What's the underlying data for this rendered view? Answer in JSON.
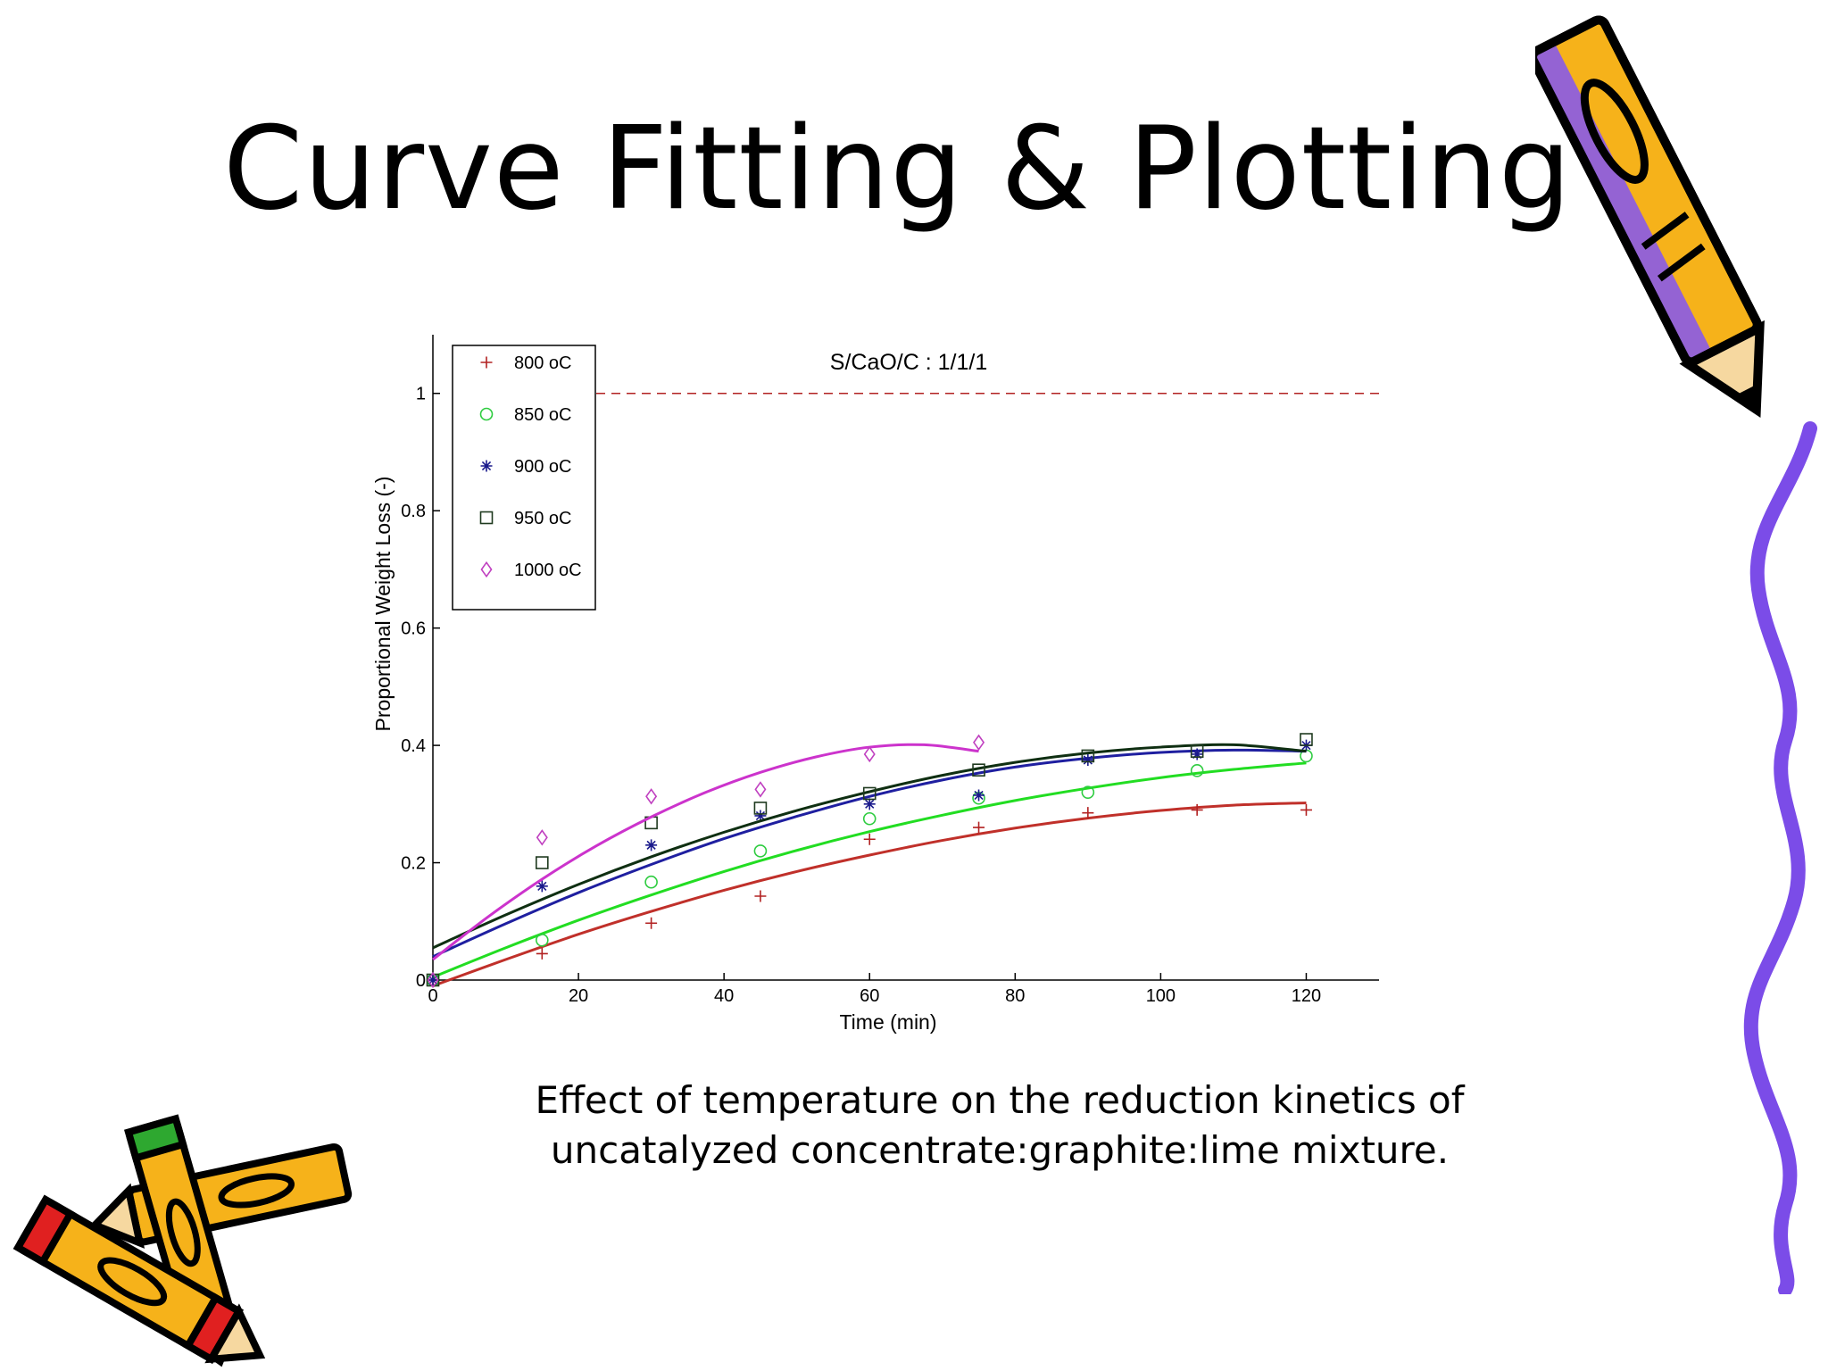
{
  "slide": {
    "title": "Curve Fitting & Plotting",
    "caption_line1": "Effect of temperature on the reduction kinetics of",
    "caption_line2": "uncatalyzed concentrate:graphite:lime mixture."
  },
  "decorations": {
    "top_right": "pencil-icon",
    "right_edge": "squiggle-line",
    "bottom_left": "crayons-icon"
  },
  "chart_data": {
    "type": "scatter",
    "title": "S/CaO/C : 1/1/1",
    "xlabel": "Time (min)",
    "ylabel": "Proportional Weight Loss (-)",
    "xlim": [
      0,
      130
    ],
    "ylim": [
      0,
      1.1
    ],
    "x_ticks": [
      0,
      20,
      40,
      60,
      80,
      100,
      120
    ],
    "x_tick_labels": [
      "0",
      "20",
      "40",
      "60",
      "80",
      "100",
      "120"
    ],
    "y_ticks": [
      0,
      0.2,
      0.4,
      0.6,
      0.8,
      1
    ],
    "y_tick_labels": [
      "0",
      "0.2",
      "0.4",
      "0.6",
      "0.8",
      "1"
    ],
    "grid": false,
    "legend_position": "top-left",
    "reference_line": {
      "y": 1,
      "style": "dashed",
      "color": "#b22222"
    },
    "series": [
      {
        "name": "800 oC",
        "marker": "plus",
        "color": "#b22222",
        "fit_color": "#c0302a",
        "x": [
          0,
          15,
          30,
          45,
          60,
          75,
          90,
          105,
          120
        ],
        "y": [
          0,
          0.045,
          0.097,
          0.143,
          0.24,
          0.26,
          0.285,
          0.29,
          0.29
        ],
        "fit_x": [
          0,
          10,
          20,
          30,
          40,
          50,
          60,
          70,
          80,
          90,
          100,
          110,
          120
        ],
        "fit_y": [
          -0.01,
          0.035,
          0.078,
          0.117,
          0.153,
          0.185,
          0.213,
          0.238,
          0.259,
          0.276,
          0.289,
          0.298,
          0.302
        ]
      },
      {
        "name": "850 oC",
        "marker": "circle",
        "color": "#2ecc40",
        "fit_color": "#22dd22",
        "x": [
          0,
          15,
          30,
          45,
          60,
          75,
          90,
          105,
          120
        ],
        "y": [
          0,
          0.068,
          0.167,
          0.22,
          0.275,
          0.31,
          0.32,
          0.357,
          0.382
        ],
        "fit_x": [
          0,
          10,
          20,
          30,
          40,
          50,
          60,
          70,
          80,
          90,
          100,
          110,
          120
        ],
        "fit_y": [
          0.005,
          0.055,
          0.102,
          0.145,
          0.185,
          0.221,
          0.253,
          0.281,
          0.306,
          0.327,
          0.345,
          0.359,
          0.37
        ]
      },
      {
        "name": "900 oC",
        "marker": "star",
        "color": "#1a1a8c",
        "fit_color": "#1f1fa0",
        "x": [
          0,
          15,
          30,
          45,
          60,
          75,
          90,
          105,
          120
        ],
        "y": [
          0,
          0.16,
          0.23,
          0.28,
          0.3,
          0.315,
          0.375,
          0.385,
          0.4
        ],
        "fit_x": [
          0,
          10,
          20,
          30,
          40,
          50,
          60,
          70,
          80,
          90,
          100,
          110,
          120
        ],
        "fit_y": [
          0.04,
          0.096,
          0.149,
          0.197,
          0.241,
          0.279,
          0.313,
          0.341,
          0.363,
          0.378,
          0.388,
          0.392,
          0.39
        ]
      },
      {
        "name": "950 oC",
        "marker": "square",
        "color": "#1f3a1f",
        "fit_color": "#0f2f12",
        "x": [
          0,
          15,
          30,
          45,
          60,
          75,
          90,
          105,
          120
        ],
        "y": [
          0,
          0.2,
          0.268,
          0.293,
          0.318,
          0.358,
          0.382,
          0.39,
          0.41
        ],
        "fit_x": [
          0,
          10,
          20,
          30,
          40,
          50,
          60,
          70,
          80,
          90,
          100,
          110,
          120
        ],
        "fit_y": [
          0.055,
          0.111,
          0.163,
          0.21,
          0.252,
          0.289,
          0.321,
          0.349,
          0.371,
          0.387,
          0.397,
          0.401,
          0.39
        ]
      },
      {
        "name": "1000 oC",
        "marker": "diamond",
        "color": "#c040c0",
        "fit_color": "#cc33cc",
        "x": [
          0,
          15,
          30,
          45,
          60,
          75
        ],
        "y": [
          0,
          0.243,
          0.313,
          0.325,
          0.385,
          0.405
        ],
        "fit_x": [
          0,
          7.5,
          15,
          22.5,
          30,
          37.5,
          45,
          52.5,
          60,
          67.5,
          75
        ],
        "fit_y": [
          0.035,
          0.107,
          0.172,
          0.229,
          0.278,
          0.32,
          0.354,
          0.38,
          0.397,
          0.401,
          0.39
        ]
      }
    ]
  }
}
